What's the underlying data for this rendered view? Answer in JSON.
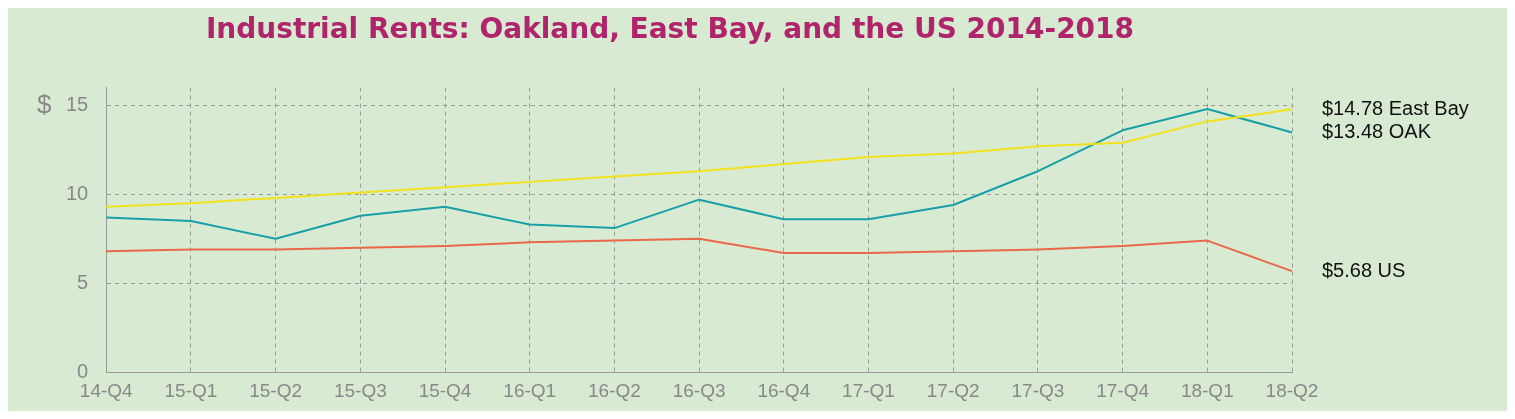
{
  "chart_data": {
    "type": "line",
    "title": "Industrial Rents: Oakland, East Bay, and the US 2014-2018",
    "ylabel": "$",
    "categories": [
      "14-Q4",
      "15-Q1",
      "15-Q2",
      "15-Q3",
      "15-Q4",
      "16-Q1",
      "16-Q2",
      "16-Q3",
      "16-Q4",
      "17-Q1",
      "17-Q2",
      "17-Q3",
      "17-Q4",
      "18-Q1",
      "18-Q2"
    ],
    "series": [
      {
        "name": "East Bay",
        "color": "#f2e21c",
        "values": [
          9.3,
          9.5,
          9.8,
          10.1,
          10.4,
          10.7,
          11.0,
          11.3,
          11.7,
          12.1,
          12.3,
          12.7,
          12.9,
          14.1,
          14.78
        ],
        "value_labels": [
          null,
          null,
          null,
          null,
          null,
          null,
          null,
          null,
          null,
          null,
          null,
          null,
          null,
          null,
          "$14.78"
        ]
      },
      {
        "name": "OAK",
        "color": "#17a0a8",
        "values": [
          8.7,
          8.5,
          7.5,
          8.8,
          9.3,
          8.3,
          8.1,
          9.7,
          8.6,
          8.6,
          9.4,
          11.3,
          13.6,
          14.8,
          13.48
        ],
        "value_labels": [
          null,
          null,
          null,
          null,
          null,
          null,
          null,
          null,
          null,
          null,
          null,
          null,
          null,
          null,
          "$13.48"
        ]
      },
      {
        "name": "US",
        "color": "#e9684a",
        "values": [
          6.8,
          6.9,
          6.9,
          7.0,
          7.1,
          7.3,
          7.4,
          7.5,
          6.7,
          6.7,
          6.8,
          6.9,
          7.1,
          7.4,
          5.68
        ],
        "value_labels": [
          null,
          null,
          null,
          null,
          null,
          null,
          null,
          null,
          null,
          null,
          null,
          null,
          null,
          null,
          "$5.68"
        ]
      }
    ],
    "ylim": [
      0,
      16
    ],
    "yticks": [
      0,
      5,
      10,
      15
    ],
    "grid": true,
    "legend": false,
    "marker": "none",
    "line_style": "solid"
  }
}
